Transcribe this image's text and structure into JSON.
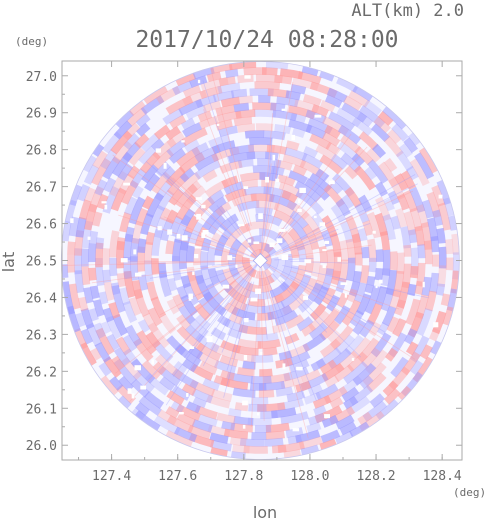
{
  "header": {
    "altitude_label": "ALT(km) 2.0",
    "datetime": "2017/10/24 08:28:00"
  },
  "axes": {
    "y_unit": "(deg)",
    "x_unit": "(deg)",
    "y_label": "lat",
    "x_label": "lon",
    "x_ticks": [
      "127.4",
      "127.6",
      "127.8",
      "128.0",
      "128.2",
      "128.4"
    ],
    "x_tick_values": [
      127.4,
      127.6,
      127.8,
      128.0,
      128.2,
      128.4
    ],
    "y_ticks": [
      "26.0",
      "26.1",
      "26.2",
      "26.3",
      "26.4",
      "26.5",
      "26.6",
      "26.7",
      "26.8",
      "26.9",
      "27.0"
    ],
    "y_tick_values": [
      26.0,
      26.1,
      26.2,
      26.3,
      26.4,
      26.5,
      26.6,
      26.7,
      26.8,
      26.9,
      27.0
    ],
    "x_range": [
      127.25,
      128.46
    ],
    "y_range": [
      25.96,
      27.04
    ]
  },
  "radar": {
    "center_lon": 127.85,
    "center_lat": 26.5,
    "positive_color": "#ff9999",
    "negative_color": "#9999ff"
  },
  "frame_color": "#aaaaaa"
}
